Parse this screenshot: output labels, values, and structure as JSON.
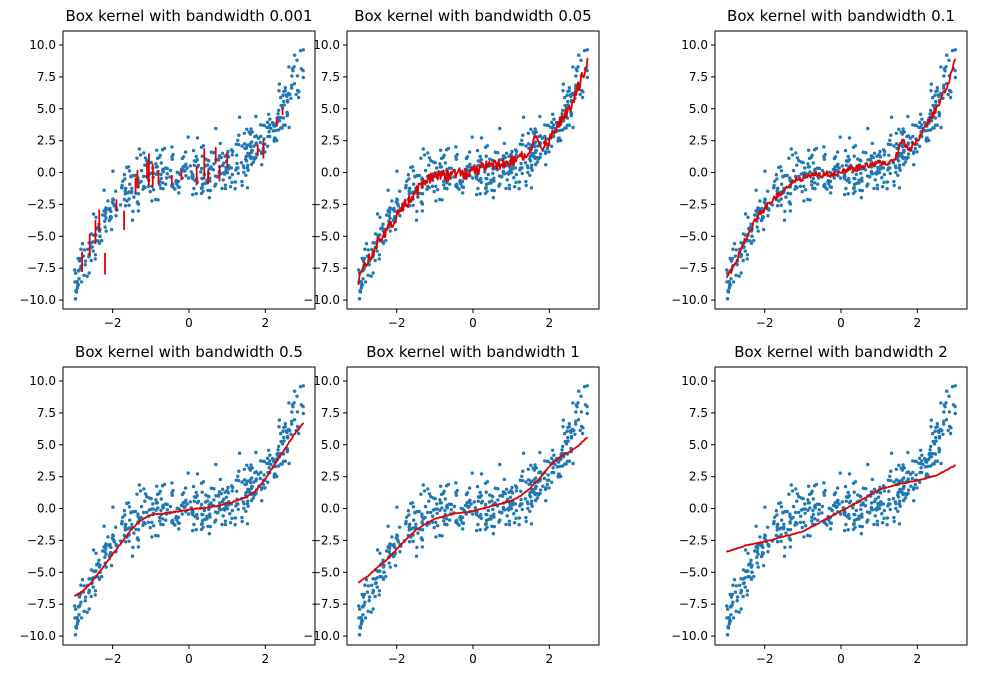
{
  "figure": {
    "background": "#ffffff"
  },
  "style": {
    "scatter_color": "#1f77b4",
    "line_color": "#e00000",
    "point_radius": 1.7,
    "line_width": 1.8
  },
  "chart_data": [
    {
      "id": "panel-1",
      "type": "scatter",
      "title": "Box kernel with bandwidth 0.001",
      "xlim": [
        -3.3,
        3.3
      ],
      "ylim": [
        -10.7,
        11.1
      ],
      "xticks": [
        -2,
        0,
        2
      ],
      "xticklabels": [
        "−2",
        "0",
        "2"
      ],
      "yticks": [
        -10,
        -7.5,
        -5,
        -2.5,
        0,
        2.5,
        5,
        7.5,
        10
      ],
      "yticklabels": [
        "−10.0",
        "−7.5",
        "−5.0",
        "−2.5",
        "0.0",
        "2.5",
        "5.0",
        "7.5",
        "10.0"
      ],
      "fit": {
        "style": "segments",
        "segments": [
          [
            -2.8,
            -7.8,
            -6.2
          ],
          [
            -2.6,
            -6.5,
            -4.8
          ],
          [
            -2.45,
            -5.6,
            -3.7
          ],
          [
            -2.35,
            -4.6,
            -2.9
          ],
          [
            -2.2,
            -8.0,
            -6.3
          ],
          [
            -1.9,
            -3.0,
            -2.1
          ],
          [
            -1.7,
            -4.5,
            -3.0
          ],
          [
            -1.4,
            -1.6,
            -0.4
          ],
          [
            -1.35,
            -1.2,
            0.2
          ],
          [
            -1.1,
            -0.5,
            0.8
          ],
          [
            -1.05,
            -1.0,
            1.5
          ],
          [
            -0.95,
            -1.2,
            0.7
          ],
          [
            -0.8,
            -0.9,
            0.2
          ],
          [
            -0.45,
            -1.0,
            -0.2
          ],
          [
            -0.2,
            -0.6,
            0.2
          ],
          [
            0.2,
            -1.0,
            0.5
          ],
          [
            0.4,
            -0.5,
            1.9
          ],
          [
            0.5,
            -0.9,
            0.2
          ],
          [
            0.7,
            0.7,
            2.0
          ],
          [
            0.8,
            -0.7,
            0.6
          ],
          [
            1.0,
            0.4,
            1.6
          ],
          [
            1.8,
            1.3,
            2.2
          ],
          [
            1.95,
            1.1,
            2.6
          ],
          [
            2.3,
            3.6,
            4.3
          ],
          [
            2.45,
            4.5,
            5.1
          ]
        ]
      }
    },
    {
      "id": "panel-2",
      "type": "scatter",
      "title": "Box kernel with bandwidth 0.05",
      "xlim": [
        -3.3,
        3.3
      ],
      "ylim": [
        -10.7,
        11.1
      ],
      "xticks": [
        -2,
        0,
        2
      ],
      "xticklabels": [
        "−2",
        "0",
        "2"
      ],
      "yticks": [
        -10,
        -7.5,
        -5,
        -2.5,
        0,
        2.5,
        5,
        7.5,
        10
      ],
      "yticklabels": [
        "−10.0",
        "−7.5",
        "−5.0",
        "−2.5",
        "0.0",
        "2.5",
        "5.0",
        "7.5",
        "10.0"
      ],
      "fit": {
        "style": "line",
        "noise": 0.45,
        "x": [
          -3.0,
          -2.8,
          -2.6,
          -2.4,
          -2.2,
          -2.0,
          -1.8,
          -1.6,
          -1.4,
          -1.2,
          -1.0,
          -0.8,
          -0.6,
          -0.4,
          -0.2,
          0.0,
          0.2,
          0.4,
          0.6,
          0.8,
          1.0,
          1.2,
          1.4,
          1.6,
          1.8,
          2.0,
          2.2,
          2.4,
          2.6,
          2.8,
          3.0
        ],
        "y": [
          -8.4,
          -7.2,
          -6.1,
          -5.0,
          -4.3,
          -3.5,
          -2.6,
          -2.0,
          -1.2,
          -0.7,
          -0.3,
          -0.2,
          -0.3,
          0.1,
          -0.1,
          0.2,
          0.3,
          0.5,
          0.6,
          0.8,
          0.9,
          1.1,
          1.4,
          2.6,
          2.0,
          2.5,
          3.6,
          4.5,
          5.5,
          7.0,
          8.8
        ]
      }
    },
    {
      "id": "panel-3",
      "type": "scatter",
      "title": "Box kernel with bandwidth 0.1",
      "xlim": [
        -3.3,
        3.3
      ],
      "ylim": [
        -10.7,
        11.1
      ],
      "xticks": [
        -2,
        0,
        2
      ],
      "xticklabels": [
        "−2",
        "0",
        "2"
      ],
      "yticks": [
        -10,
        -7.5,
        -5,
        -2.5,
        0,
        2.5,
        5,
        7.5,
        10
      ],
      "yticklabels": [
        "−10.0",
        "−7.5",
        "−5.0",
        "−2.5",
        "0.0",
        "2.5",
        "5.0",
        "7.5",
        "10.0"
      ],
      "fit": {
        "style": "line",
        "noise": 0.25,
        "x": [
          -3.0,
          -2.8,
          -2.6,
          -2.4,
          -2.2,
          -2.0,
          -1.8,
          -1.6,
          -1.4,
          -1.2,
          -1.0,
          -0.8,
          -0.6,
          -0.4,
          -0.2,
          0.0,
          0.2,
          0.4,
          0.6,
          0.8,
          1.0,
          1.2,
          1.4,
          1.6,
          1.8,
          2.0,
          2.2,
          2.4,
          2.6,
          2.8,
          3.0
        ],
        "y": [
          -8.2,
          -7.3,
          -5.8,
          -4.6,
          -3.5,
          -2.8,
          -2.1,
          -1.7,
          -1.0,
          -0.5,
          -0.4,
          -0.2,
          -0.2,
          -0.1,
          -0.2,
          0.1,
          0.3,
          0.3,
          0.5,
          0.6,
          0.7,
          0.8,
          1.0,
          2.5,
          1.9,
          2.5,
          3.6,
          4.5,
          5.6,
          7.0,
          8.8
        ]
      }
    },
    {
      "id": "panel-4",
      "type": "scatter",
      "title": "Box kernel with bandwidth 0.5",
      "xlim": [
        -3.3,
        3.3
      ],
      "ylim": [
        -10.7,
        11.1
      ],
      "xticks": [
        -2,
        0,
        2
      ],
      "xticklabels": [
        "−2",
        "0",
        "2"
      ],
      "yticks": [
        -10,
        -7.5,
        -5,
        -2.5,
        0,
        2.5,
        5,
        7.5,
        10
      ],
      "yticklabels": [
        "−10.0",
        "−7.5",
        "−5.0",
        "−2.5",
        "0.0",
        "2.5",
        "5.0",
        "7.5",
        "10.0"
      ],
      "fit": {
        "style": "line",
        "noise": 0.05,
        "x": [
          -3.0,
          -2.75,
          -2.5,
          -2.25,
          -2.0,
          -1.75,
          -1.5,
          -1.25,
          -1.0,
          -0.75,
          -0.5,
          -0.25,
          0.0,
          0.25,
          0.5,
          0.75,
          1.0,
          1.25,
          1.5,
          1.75,
          2.0,
          2.25,
          2.5,
          2.75,
          3.0
        ],
        "y": [
          -6.9,
          -6.4,
          -5.6,
          -4.6,
          -3.6,
          -2.6,
          -1.6,
          -0.9,
          -0.5,
          -0.4,
          -0.3,
          -0.2,
          -0.1,
          0.0,
          0.1,
          0.2,
          0.4,
          0.6,
          0.9,
          1.4,
          2.3,
          3.5,
          4.6,
          5.8,
          6.7
        ]
      }
    },
    {
      "id": "panel-5",
      "type": "scatter",
      "title": "Box kernel with bandwidth 1",
      "xlim": [
        -3.3,
        3.3
      ],
      "ylim": [
        -10.7,
        11.1
      ],
      "xticks": [
        -2,
        0,
        2
      ],
      "xticklabels": [
        "−2",
        "0",
        "2"
      ],
      "yticks": [
        -10,
        -7.5,
        -5,
        -2.5,
        0,
        2.5,
        5,
        7.5,
        10
      ],
      "yticklabels": [
        "−10.0",
        "−7.5",
        "−5.0",
        "−2.5",
        "0.0",
        "2.5",
        "5.0",
        "7.5",
        "10.0"
      ],
      "fit": {
        "style": "line",
        "noise": 0.03,
        "x": [
          -3.0,
          -2.75,
          -2.5,
          -2.25,
          -2.0,
          -1.75,
          -1.5,
          -1.25,
          -1.0,
          -0.75,
          -0.5,
          -0.25,
          0.0,
          0.25,
          0.5,
          0.75,
          1.0,
          1.25,
          1.5,
          1.75,
          2.0,
          2.25,
          2.5,
          2.75,
          3.0
        ],
        "y": [
          -5.8,
          -5.3,
          -4.6,
          -4.0,
          -3.2,
          -2.4,
          -1.7,
          -1.2,
          -0.8,
          -0.6,
          -0.4,
          -0.3,
          -0.2,
          0.0,
          0.2,
          0.4,
          0.6,
          1.0,
          1.6,
          2.4,
          3.3,
          4.0,
          4.4,
          4.9,
          5.6
        ]
      }
    },
    {
      "id": "panel-6",
      "type": "scatter",
      "title": "Box kernel with bandwidth 2",
      "xlim": [
        -3.3,
        3.3
      ],
      "ylim": [
        -10.7,
        11.1
      ],
      "xticks": [
        -2,
        0,
        2
      ],
      "xticklabels": [
        "−2",
        "0",
        "2"
      ],
      "yticks": [
        -10,
        -7.5,
        -5,
        -2.5,
        0,
        2.5,
        5,
        7.5,
        10
      ],
      "yticklabels": [
        "−10.0",
        "−7.5",
        "−5.0",
        "−2.5",
        "0.0",
        "2.5",
        "5.0",
        "7.5",
        "10.0"
      ],
      "fit": {
        "style": "line",
        "noise": 0.03,
        "x": [
          -3.0,
          -2.5,
          -2.0,
          -1.5,
          -1.0,
          -0.5,
          0.0,
          0.5,
          1.0,
          1.5,
          2.0,
          2.5,
          3.0
        ],
        "y": [
          -3.4,
          -2.9,
          -2.6,
          -2.2,
          -1.8,
          -1.0,
          -0.2,
          0.6,
          1.5,
          1.9,
          2.2,
          2.6,
          3.4
        ]
      }
    }
  ]
}
